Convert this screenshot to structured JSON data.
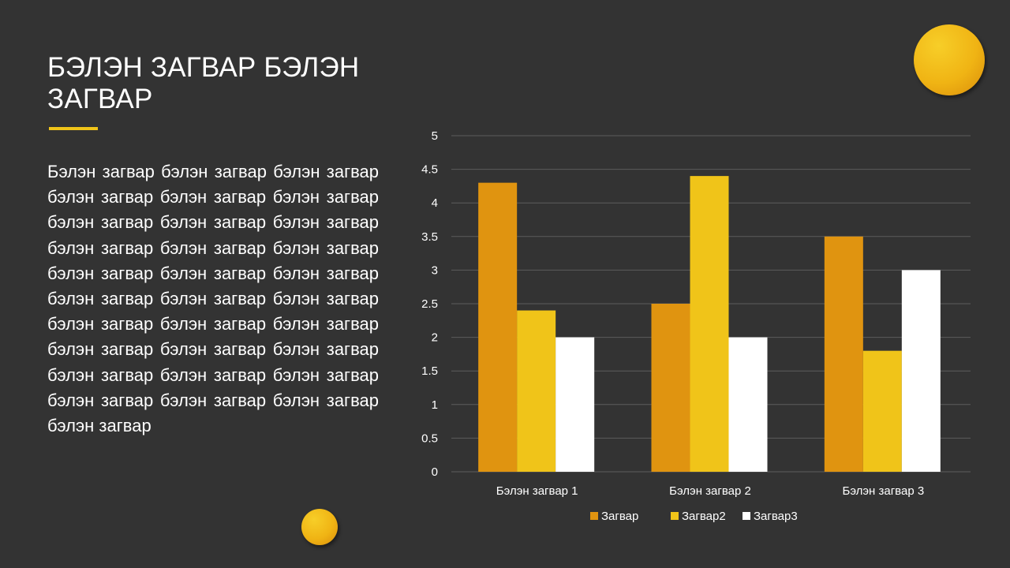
{
  "slide": {
    "title": "БЭЛЭН ЗАГВАР БЭЛЭН ЗАГВАР",
    "body": "Бэлэн загвар бэлэн загвар бэлэн загвар бэлэн загвар бэлэн загвар бэлэн загвар бэлэн загвар бэлэн загвар бэлэн загвар бэлэн загвар бэлэн загвар бэлэн загвар бэлэн загвар бэлэн загвар бэлэн загвар бэлэн загвар бэлэн загвар бэлэн загвар бэлэн загвар бэлэн загвар бэлэн загвар бэлэн загвар бэлэн загвар бэлэн загвар бэлэн загвар бэлэн загвар бэлэн загвар бэлэн загвар бэлэн загвар бэлэн загвар бэлэн загвар",
    "accent_color": "#f0c419",
    "background_color": "#333333"
  },
  "chart_data": {
    "type": "bar",
    "title": "",
    "xlabel": "",
    "ylabel": "",
    "categories": [
      "Бэлэн загвар 1",
      "Бэлэн загвар 2",
      "Бэлэн загвар 3"
    ],
    "series": [
      {
        "name": "Загвар",
        "values": [
          4.3,
          2.5,
          3.5
        ],
        "color": "#e09410"
      },
      {
        "name": "Загвар2",
        "values": [
          2.4,
          4.4,
          1.8
        ],
        "color": "#f0c419"
      },
      {
        "name": "Загвар3",
        "values": [
          2.0,
          2.0,
          3.0
        ],
        "color": "#ffffff"
      }
    ],
    "ylim": [
      0,
      5
    ],
    "yticks": [
      "0",
      "0.5",
      "1",
      "1.5",
      "2",
      "2.5",
      "3",
      "3.5",
      "4",
      "4.5",
      "5"
    ],
    "grid": true,
    "gridline_color": "#5c5c5c",
    "legend_position": "bottom"
  }
}
